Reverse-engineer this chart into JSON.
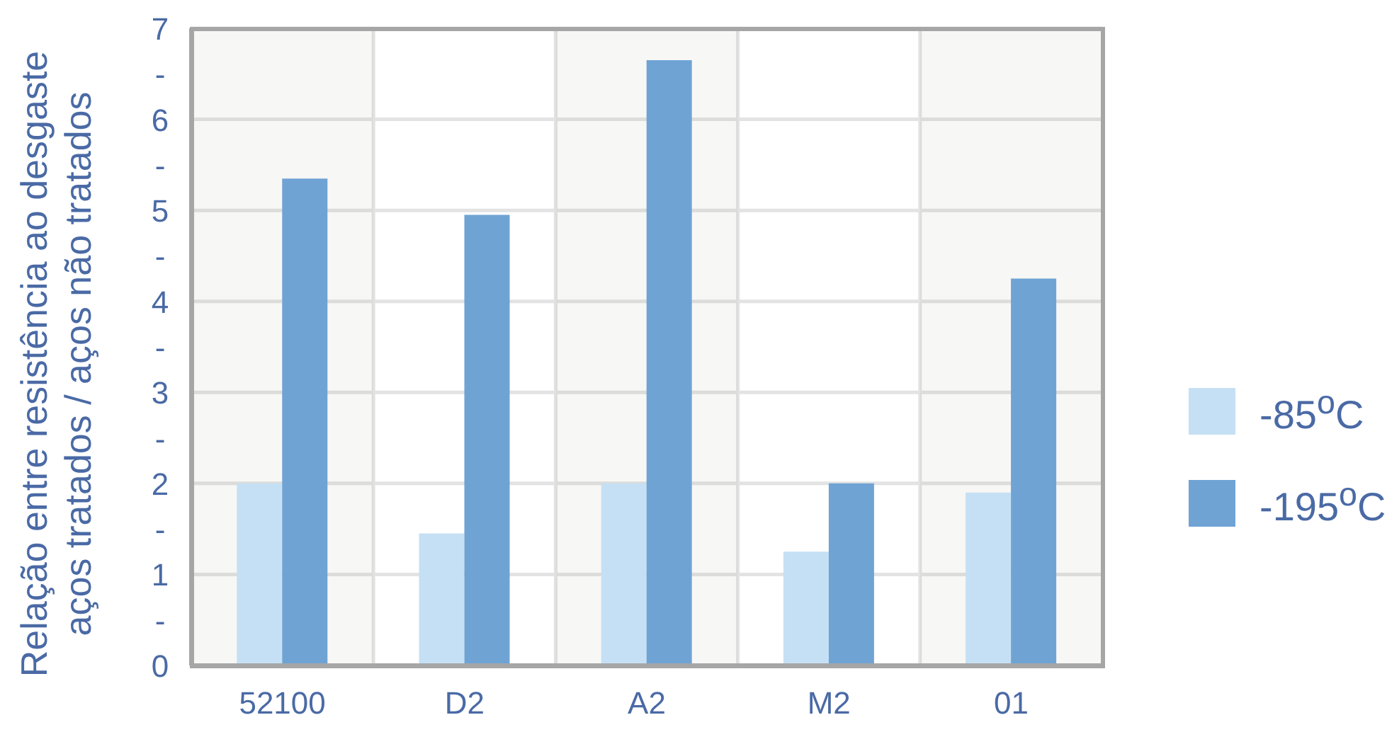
{
  "chart_data": {
    "type": "bar",
    "ylabel": "Relação entre resistência ao desgaste\naços tratados / aços não tratados",
    "categories": [
      "52100",
      "D2",
      "A2",
      "M2",
      "01"
    ],
    "series": [
      {
        "name": "-85$^{o}$C",
        "color": "#c5e0f4",
        "values": [
          2.0,
          1.45,
          2.0,
          1.25,
          1.9
        ]
      },
      {
        "name": "-195$^{o}$C",
        "color": "#6fa3d4",
        "values": [
          5.35,
          4.95,
          6.65,
          2.0,
          4.25
        ]
      }
    ],
    "ylim": [
      0,
      7
    ],
    "yticks": [
      0,
      {
        "value": 0.5,
        "label": "-"
      },
      1,
      {
        "value": 1.5,
        "label": "-"
      },
      2,
      {
        "value": 2.5,
        "label": "-"
      },
      3,
      {
        "value": 3.5,
        "label": "-"
      },
      4,
      {
        "value": 4.5,
        "label": "-"
      },
      5,
      {
        "value": 5.5,
        "label": "-"
      },
      6,
      {
        "value": 6.5,
        "label": "-"
      },
      7
    ],
    "grid": true,
    "legend": "right",
    "bands": [
      {
        "axis": "x",
        "from": "52100",
        "to": "52100",
        "color": "#f7f7f5"
      },
      {
        "axis": "x",
        "from": "A2",
        "to": "A2",
        "color": "#f7f7f5"
      },
      {
        "axis": "x",
        "from": "01",
        "to": "01",
        "color": "#f7f7f5"
      }
    ]
  }
}
